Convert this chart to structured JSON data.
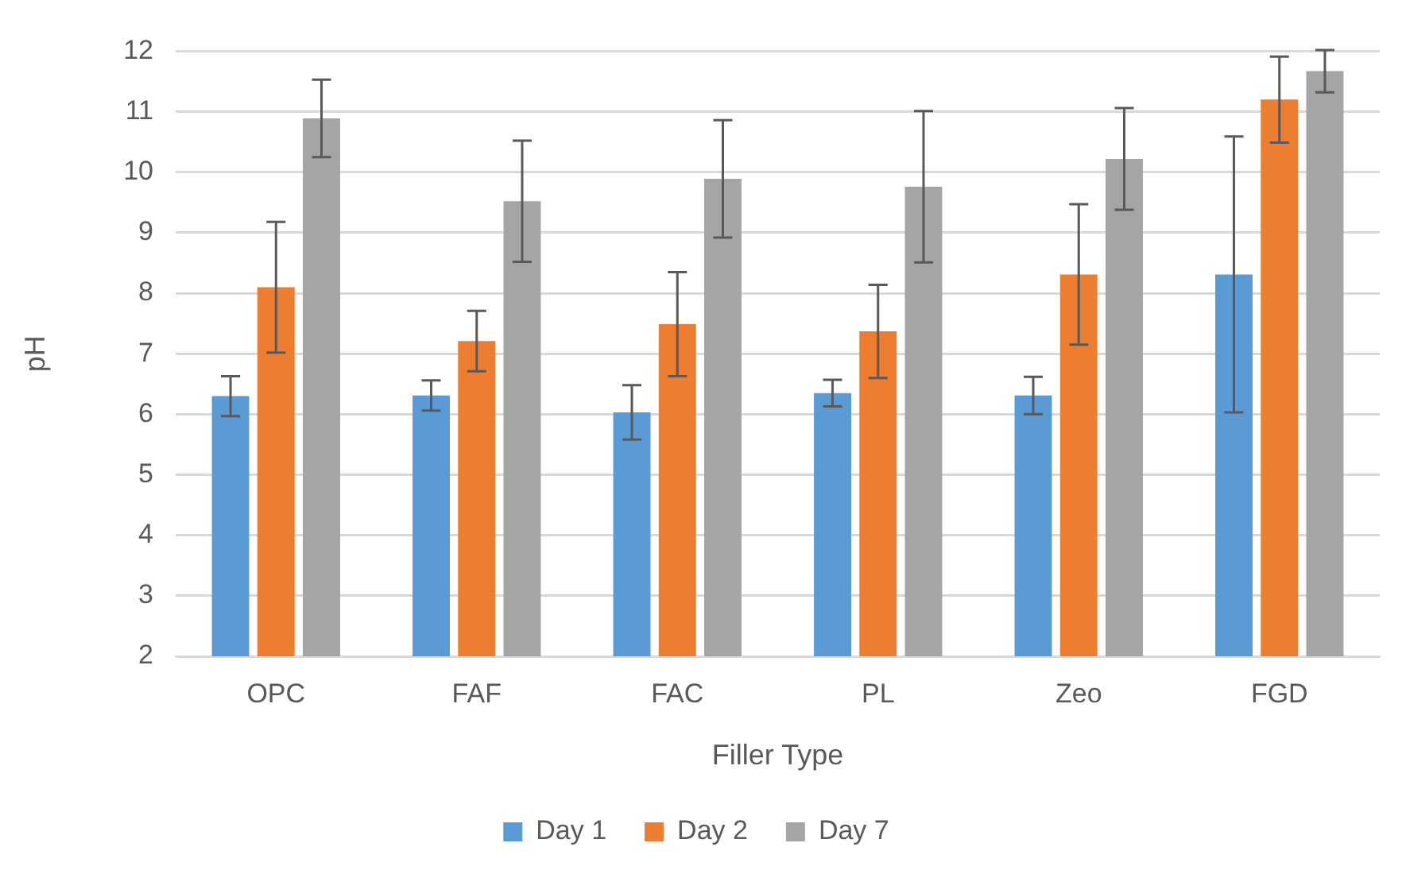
{
  "chart_data": {
    "type": "bar",
    "xlabel": "Filler Type",
    "ylabel": "pH",
    "categories": [
      "OPC",
      "FAF",
      "FAC",
      "PL",
      "Zeo",
      "FGD"
    ],
    "series": [
      {
        "name": "Day 1",
        "color": "#5b9bd5",
        "values": [
          6.3,
          6.31,
          6.03,
          6.35,
          6.31,
          8.31
        ],
        "errors": [
          0.33,
          0.25,
          0.45,
          0.22,
          0.31,
          2.28
        ]
      },
      {
        "name": "Day 2",
        "color": "#ed7d31",
        "values": [
          8.1,
          7.21,
          7.49,
          7.37,
          8.31,
          11.2
        ],
        "errors": [
          1.08,
          0.5,
          0.86,
          0.77,
          1.16,
          0.71
        ]
      },
      {
        "name": "Day 7",
        "color": "#a5a5a5",
        "values": [
          10.89,
          9.52,
          9.89,
          9.76,
          10.22,
          11.67
        ],
        "errors": [
          0.64,
          1.0,
          0.97,
          1.25,
          0.84,
          0.35
        ]
      }
    ],
    "ylim": [
      2,
      12
    ],
    "yticks": [
      2,
      3,
      4,
      5,
      6,
      7,
      8,
      9,
      10,
      11,
      12
    ],
    "grid": "y",
    "legend": "bottom"
  }
}
